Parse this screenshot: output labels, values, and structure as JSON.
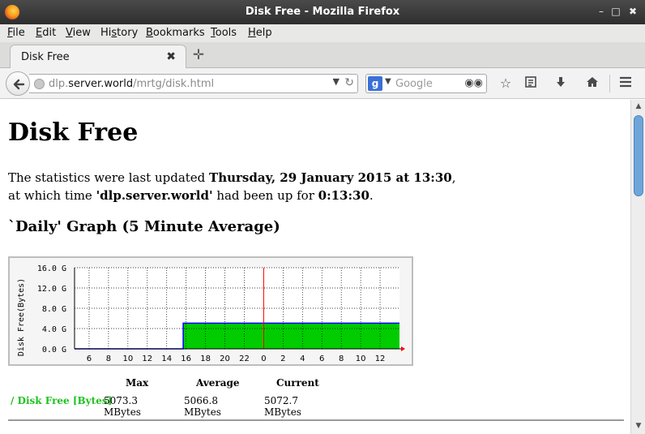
{
  "window": {
    "title": "Disk Free - Mozilla Firefox",
    "minimize": "–",
    "maximize": "□",
    "close": "✖"
  },
  "menu": [
    "File",
    "Edit",
    "View",
    "History",
    "Bookmarks",
    "Tools",
    "Help"
  ],
  "menu_keys": [
    "F",
    "E",
    "V",
    "s",
    "B",
    "T",
    "H"
  ],
  "tab": {
    "label": "Disk Free",
    "close": "✖",
    "new_tab": "✛"
  },
  "navbar": {
    "url_pre": "dlp.",
    "url_host": "server.world",
    "url_path": "/mrtg/disk.html",
    "search_engine": "g",
    "search_placeholder": "Google",
    "icons": [
      "back-arrow-icon",
      "globe-icon",
      "reload-icon",
      "google-icon",
      "binoculars-icon",
      "bookmark-star-icon",
      "reading-list-icon",
      "download-icon",
      "home-icon",
      "hamburger-menu-icon"
    ]
  },
  "page": {
    "title": "Disk Free",
    "stats_line1_prefix": "The statistics were last updated ",
    "stats_line1_bold": "Thursday, 29 January 2015 at 13:30",
    "stats_line1_suffix": ",",
    "stats_line2_prefix": "at which time ",
    "stats_line2_host": "'dlp.server.world'",
    "stats_line2_mid": " had been up for ",
    "stats_line2_uptime": "0:13:30",
    "stats_line2_suffix": ".",
    "graph_heading": "`Daily' Graph (5 Minute Average)"
  },
  "chart_data": {
    "type": "area",
    "ylabel": "Disk Free(Bytes)",
    "y_ticks": [
      "0.0 G",
      "4.0 G",
      "8.0 G",
      "12.0 G",
      "16.0 G"
    ],
    "ylim": [
      0,
      16
    ],
    "x_ticks": [
      "6",
      "8",
      "10",
      "12",
      "14",
      "16",
      "18",
      "20",
      "22",
      "0",
      "2",
      "4",
      "6",
      "8",
      "10",
      "12"
    ],
    "x_hours": [
      6,
      8,
      10,
      12,
      14,
      16,
      18,
      20,
      22,
      24,
      26,
      28,
      30,
      32,
      34,
      36
    ],
    "xlim": [
      4.5,
      38
    ],
    "current_hour": 24,
    "series": [
      {
        "name": "/ Disk Free [Bytes]",
        "x": [
          4.5,
          15.7,
          15.7,
          38
        ],
        "y": [
          0,
          0,
          5.07,
          5.07
        ]
      }
    ],
    "colors": {
      "fill": "#00cc00",
      "line": "#0000ff",
      "now": "#ff0000",
      "grid": "#000000"
    },
    "grid": true
  },
  "summary": {
    "headers": [
      "Max",
      "Average",
      "Current"
    ],
    "legend_label": "/ Disk Free [Bytes]",
    "values": [
      "5073.3 MBytes",
      "5066.8 MBytes",
      "5072.7 MBytes"
    ]
  },
  "scrollbar": {
    "up": "▲",
    "down": "▼"
  }
}
